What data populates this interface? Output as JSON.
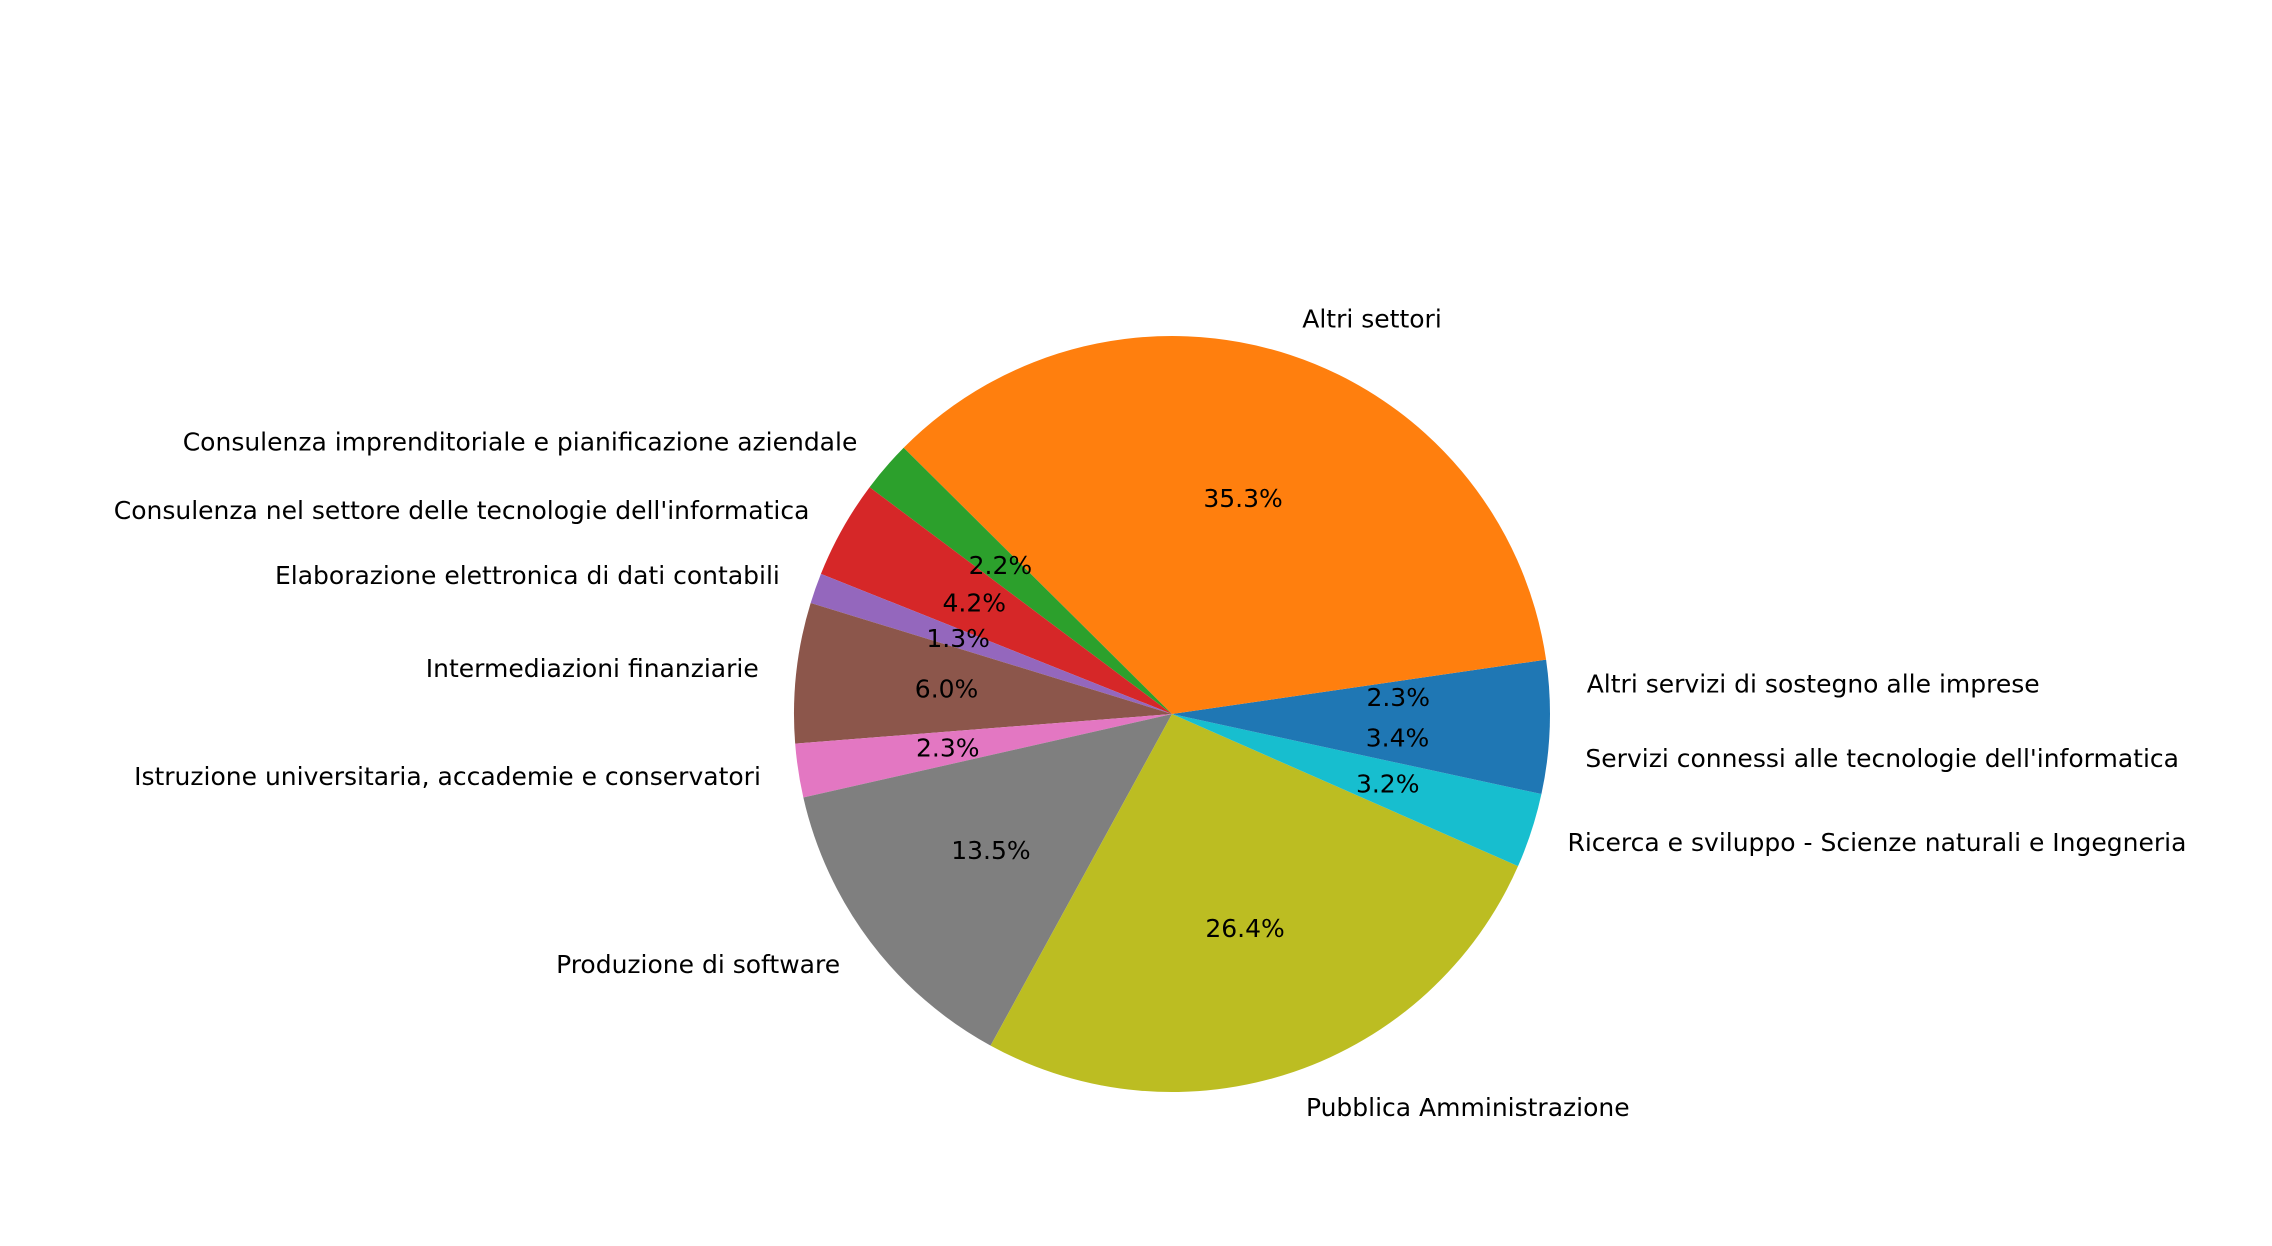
{
  "chart_data": {
    "type": "pie",
    "title": "",
    "start_angle_deg": 0,
    "direction": "counterclockwise",
    "slices": [
      {
        "label": "Altri servizi di sostegno alle imprese",
        "pct_label": "2.3%",
        "value": 2.3,
        "color": "#1f77b4"
      },
      {
        "label": "Altri settori",
        "pct_label": "35.3%",
        "value": 35.3,
        "color": "#ff7f0e"
      },
      {
        "label": "Consulenza imprenditoriale e pianificazione aziendale",
        "pct_label": "2.2%",
        "value": 2.2,
        "color": "#2ca02c"
      },
      {
        "label": "Consulenza nel settore delle tecnologie dell'informatica",
        "pct_label": "4.2%",
        "value": 4.2,
        "color": "#d62728"
      },
      {
        "label": "Elaborazione elettronica di dati contabili",
        "pct_label": "1.3%",
        "value": 1.3,
        "color": "#9467bd"
      },
      {
        "label": "Intermediazioni finanziarie",
        "pct_label": "6.0%",
        "value": 6.0,
        "color": "#8c564b"
      },
      {
        "label": "Istruzione universitaria, accademie e conservatori",
        "pct_label": "2.3%",
        "value": 2.3,
        "color": "#e377c2"
      },
      {
        "label": "Produzione di software",
        "pct_label": "13.5%",
        "value": 13.5,
        "color": "#7f7f7f"
      },
      {
        "label": "Pubblica Amministrazione",
        "pct_label": "26.4%",
        "value": 26.4,
        "color": "#bcbd22"
      },
      {
        "label": "Ricerca e sviluppo - Scienze naturali e Ingegneria",
        "pct_label": "3.2%",
        "value": 3.2,
        "color": "#17becf"
      },
      {
        "label": "Servizi connessi alle tecnologie dell'informatica",
        "pct_label": "3.4%",
        "value": 3.4,
        "color": "#1f77b4"
      }
    ]
  }
}
